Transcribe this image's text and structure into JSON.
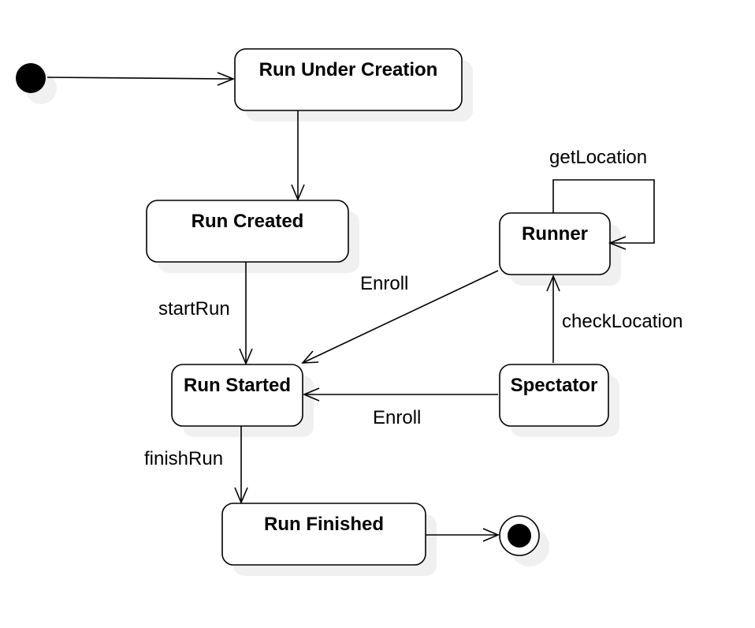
{
  "states": {
    "run_under_creation": "Run Under Creation",
    "run_created": "Run Created",
    "runner": "Runner",
    "run_started": "Run Started",
    "spectator": "Spectator",
    "run_finished": "Run Finished"
  },
  "transitions": {
    "get_location": "getLocation",
    "enroll_runner": "Enroll",
    "start_run": "startRun",
    "check_location": "checkLocation",
    "enroll_spectator": "Enroll",
    "finish_run": "finishRun"
  },
  "colors": {
    "stroke": "#000000",
    "fill": "#ffffff",
    "shadow": "#f0f0f0"
  }
}
